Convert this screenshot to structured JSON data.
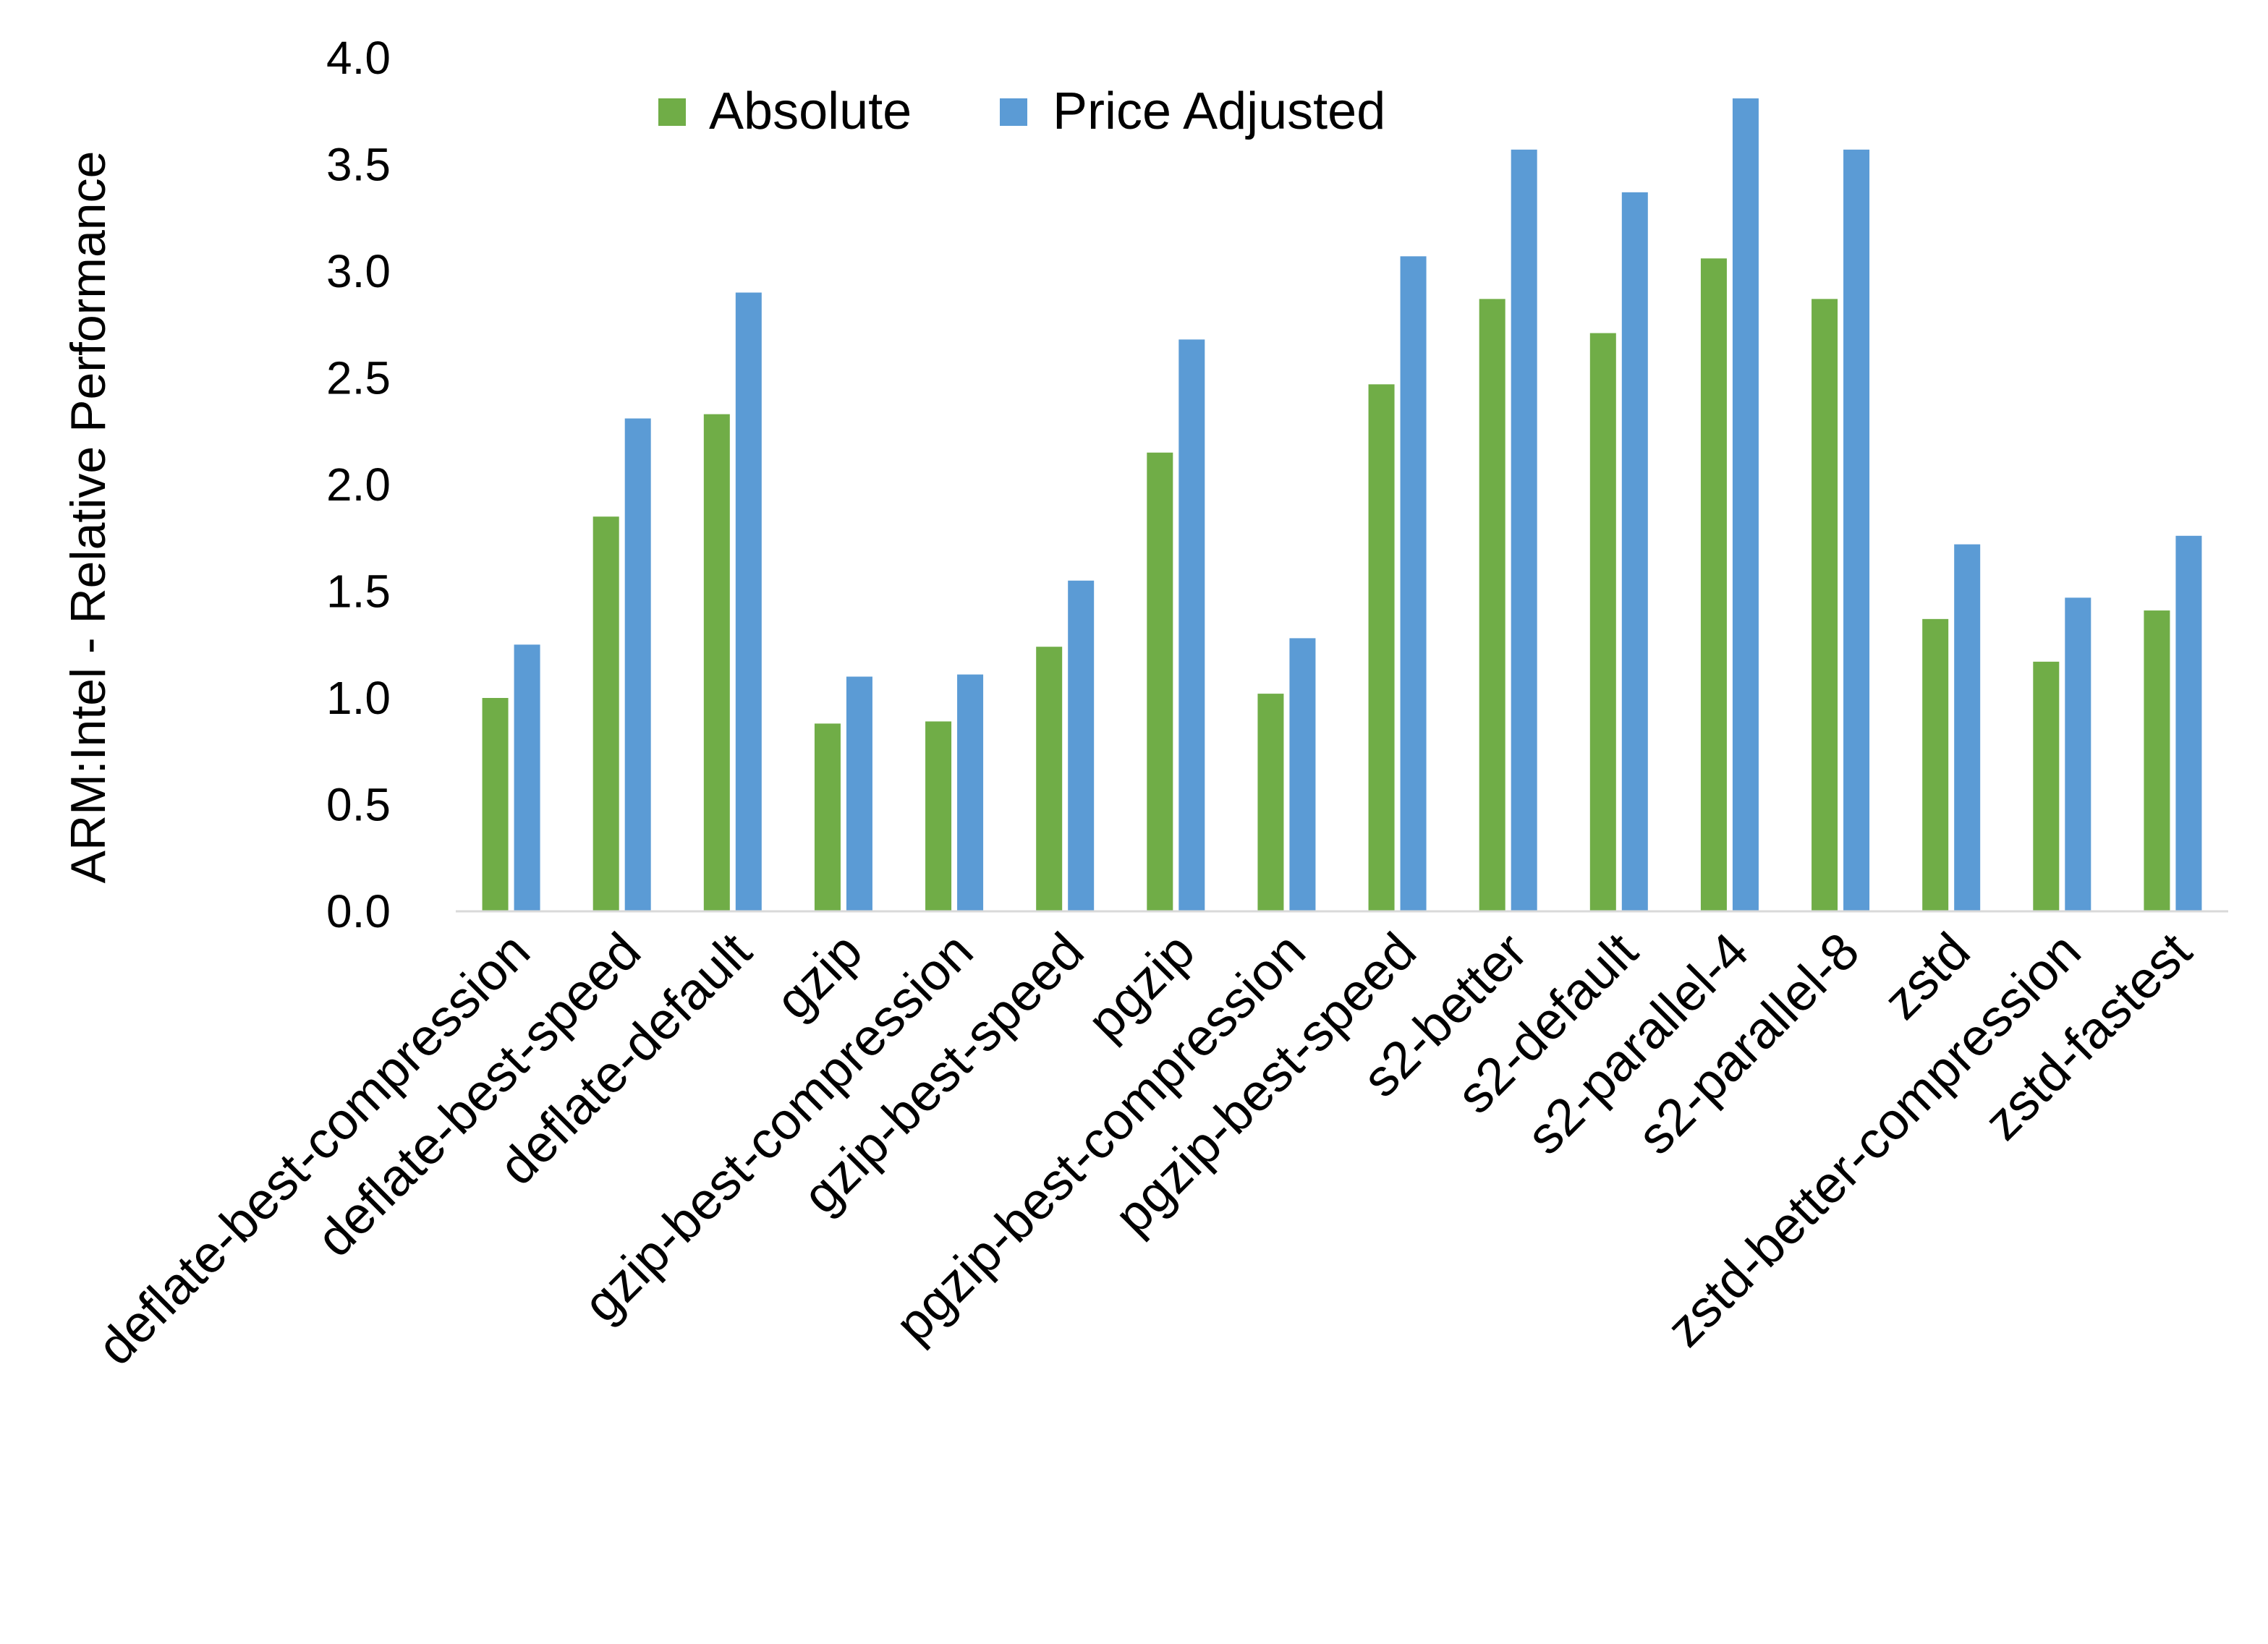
{
  "chart_data": {
    "type": "bar",
    "title": "",
    "xlabel": "",
    "ylabel": "ARM:Intel - Relative Performance",
    "ylim": [
      0,
      4.0
    ],
    "yticks": [
      "0.0",
      "0.5",
      "1.0",
      "1.5",
      "2.0",
      "2.5",
      "3.0",
      "3.5",
      "4.0"
    ],
    "grid": false,
    "legend_position": "top-center",
    "categories": [
      "deflate-best-compression",
      "deflate-best-speed",
      "deflate-default",
      "gzip",
      "gzip-best-compression",
      "gzip-best-speed",
      "pgzip",
      "pgzip-best-compression",
      "pgzip-best-speed",
      "s2-better",
      "s2-default",
      "s2-parallel-4",
      "s2-parallel-8",
      "zstd",
      "zstd-better-compression",
      "zstd-fastest"
    ],
    "series": [
      {
        "name": "Absolute",
        "color": "#70AD47",
        "values": [
          1.0,
          1.85,
          2.33,
          0.88,
          0.89,
          1.24,
          2.15,
          1.02,
          2.47,
          2.87,
          2.71,
          3.06,
          2.87,
          1.37,
          1.17,
          1.41
        ]
      },
      {
        "name": "Price Adjusted",
        "color": "#5B9BD5",
        "values": [
          1.25,
          2.31,
          2.9,
          1.1,
          1.11,
          1.55,
          2.68,
          1.28,
          3.07,
          3.57,
          3.37,
          3.81,
          3.57,
          1.72,
          1.47,
          1.76
        ]
      }
    ]
  }
}
